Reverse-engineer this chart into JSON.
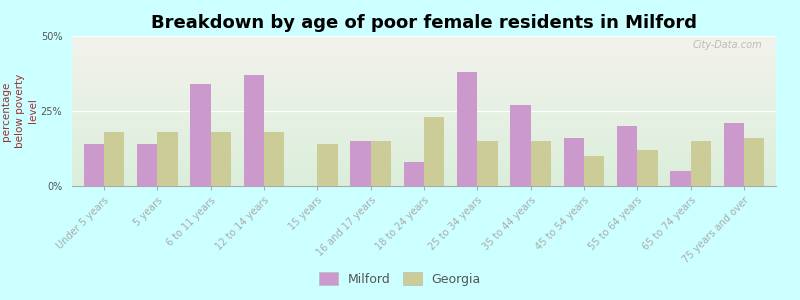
{
  "title": "Breakdown by age of poor female residents in Milford",
  "ylabel": "percentage\nbelow poverty\nlevel",
  "categories": [
    "Under 5 years",
    "5 years",
    "6 to 11 years",
    "12 to 14 years",
    "15 years",
    "16 and 17 years",
    "18 to 24 years",
    "25 to 34 years",
    "35 to 44 years",
    "45 to 54 years",
    "55 to 64 years",
    "65 to 74 years",
    "75 years and over"
  ],
  "milford_values": [
    14,
    14,
    34,
    37,
    0,
    15,
    8,
    38,
    27,
    16,
    20,
    5,
    21
  ],
  "georgia_values": [
    18,
    18,
    18,
    18,
    14,
    15,
    23,
    15,
    15,
    10,
    12,
    15,
    16
  ],
  "milford_color": "#cc99cc",
  "georgia_color": "#cccc99",
  "background_color": "#ccffff",
  "plot_bg_gradient_top": "#f2f2ec",
  "plot_bg_gradient_bottom": "#daeeda",
  "ylim": [
    0,
    50
  ],
  "ytick_labels": [
    "0%",
    "25%",
    "50%"
  ],
  "ytick_values": [
    0,
    25,
    50
  ],
  "title_fontsize": 13,
  "axis_label_fontsize": 7.5,
  "tick_fontsize": 7,
  "legend_fontsize": 9,
  "bar_width": 0.38
}
